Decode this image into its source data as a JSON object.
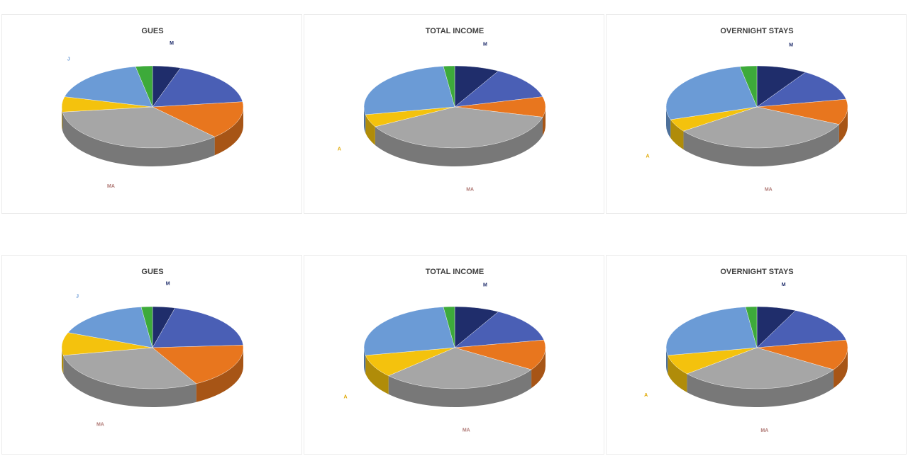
{
  "chart_data": [
    {
      "type": "pie",
      "title": "GUES",
      "slices": [
        {
          "label": "M",
          "value": 5,
          "color": "#1f2d6b",
          "label_color": "#1f2d6b"
        },
        {
          "label": "",
          "value": 18,
          "color": "#4a5fb5",
          "label_color": "#4a5fb5"
        },
        {
          "label": "",
          "value": 15,
          "color": "#e8761e",
          "label_color": "#e8761e"
        },
        {
          "label": "MA",
          "value": 35,
          "color": "#a6a6a6",
          "label_color": "#b07a76"
        },
        {
          "label": "",
          "value": 6,
          "color": "#f4c20d",
          "label_color": "#e0a800"
        },
        {
          "label": "J",
          "value": 18,
          "color": "#6b9bd6",
          "label_color": "#6b9bd6"
        },
        {
          "label": "",
          "value": 3,
          "color": "#3daa3a",
          "label_color": "#3daa3a"
        }
      ]
    },
    {
      "type": "pie",
      "title": "TOTAL INCOME",
      "slices": [
        {
          "label": "M",
          "value": 8,
          "color": "#1f2d6b",
          "label_color": "#1f2d6b"
        },
        {
          "label": "",
          "value": 13,
          "color": "#4a5fb5",
          "label_color": "#4a5fb5"
        },
        {
          "label": "",
          "value": 8,
          "color": "#e8761e",
          "label_color": "#e8761e"
        },
        {
          "label": "MA",
          "value": 38,
          "color": "#a6a6a6",
          "label_color": "#b07a76"
        },
        {
          "label": "A",
          "value": 5,
          "color": "#f4c20d",
          "label_color": "#e0a800"
        },
        {
          "label": "",
          "value": 26,
          "color": "#6b9bd6",
          "label_color": "#6b9bd6"
        },
        {
          "label": "",
          "value": 2,
          "color": "#3daa3a",
          "label_color": "#3daa3a"
        }
      ]
    },
    {
      "type": "pie",
      "title": "OVERNIGHT STAYS",
      "slices": [
        {
          "label": "M",
          "value": 9,
          "color": "#1f2d6b",
          "label_color": "#1f2d6b"
        },
        {
          "label": "",
          "value": 13,
          "color": "#4a5fb5",
          "label_color": "#4a5fb5"
        },
        {
          "label": "",
          "value": 10,
          "color": "#e8761e",
          "label_color": "#e8761e"
        },
        {
          "label": "MA",
          "value": 33,
          "color": "#a6a6a6",
          "label_color": "#b07a76"
        },
        {
          "label": "A",
          "value": 5,
          "color": "#f4c20d",
          "label_color": "#e0a800"
        },
        {
          "label": "",
          "value": 27,
          "color": "#6b9bd6",
          "label_color": "#6b9bd6"
        },
        {
          "label": "",
          "value": 3,
          "color": "#3daa3a",
          "label_color": "#3daa3a"
        }
      ]
    },
    {
      "type": "pie",
      "title": "GUES",
      "slices": [
        {
          "label": "M",
          "value": 4,
          "color": "#1f2d6b",
          "label_color": "#1f2d6b"
        },
        {
          "label": "",
          "value": 20,
          "color": "#4a5fb5",
          "label_color": "#4a5fb5"
        },
        {
          "label": "",
          "value": 18,
          "color": "#e8761e",
          "label_color": "#e8761e"
        },
        {
          "label": "MA",
          "value": 30,
          "color": "#a6a6a6",
          "label_color": "#b07a76"
        },
        {
          "label": "",
          "value": 9,
          "color": "#f4c20d",
          "label_color": "#e0a800"
        },
        {
          "label": "J",
          "value": 17,
          "color": "#6b9bd6",
          "label_color": "#6b9bd6"
        },
        {
          "label": "",
          "value": 2,
          "color": "#3daa3a",
          "label_color": "#3daa3a"
        }
      ]
    },
    {
      "type": "pie",
      "title": "TOTAL INCOME",
      "slices": [
        {
          "label": "M",
          "value": 8,
          "color": "#1f2d6b",
          "label_color": "#1f2d6b"
        },
        {
          "label": "",
          "value": 14,
          "color": "#4a5fb5",
          "label_color": "#4a5fb5"
        },
        {
          "label": "",
          "value": 12,
          "color": "#e8761e",
          "label_color": "#e8761e"
        },
        {
          "label": "MA",
          "value": 29,
          "color": "#a6a6a6",
          "label_color": "#b07a76"
        },
        {
          "label": "A",
          "value": 9,
          "color": "#f4c20d",
          "label_color": "#e0a800"
        },
        {
          "label": "",
          "value": 26,
          "color": "#6b9bd6",
          "label_color": "#6b9bd6"
        },
        {
          "label": "",
          "value": 2,
          "color": "#3daa3a",
          "label_color": "#3daa3a"
        }
      ]
    },
    {
      "type": "pie",
      "title": "OVERNIGHT STAYS",
      "slices": [
        {
          "label": "M",
          "value": 7,
          "color": "#1f2d6b",
          "label_color": "#1f2d6b"
        },
        {
          "label": "",
          "value": 15,
          "color": "#4a5fb5",
          "label_color": "#4a5fb5"
        },
        {
          "label": "",
          "value": 12,
          "color": "#e8761e",
          "label_color": "#e8761e"
        },
        {
          "label": "MA",
          "value": 30,
          "color": "#a6a6a6",
          "label_color": "#b07a76"
        },
        {
          "label": "A",
          "value": 8,
          "color": "#f4c20d",
          "label_color": "#e0a800"
        },
        {
          "label": "",
          "value": 26,
          "color": "#6b9bd6",
          "label_color": "#6b9bd6"
        },
        {
          "label": "",
          "value": 2,
          "color": "#3daa3a",
          "label_color": "#3daa3a"
        }
      ]
    }
  ]
}
